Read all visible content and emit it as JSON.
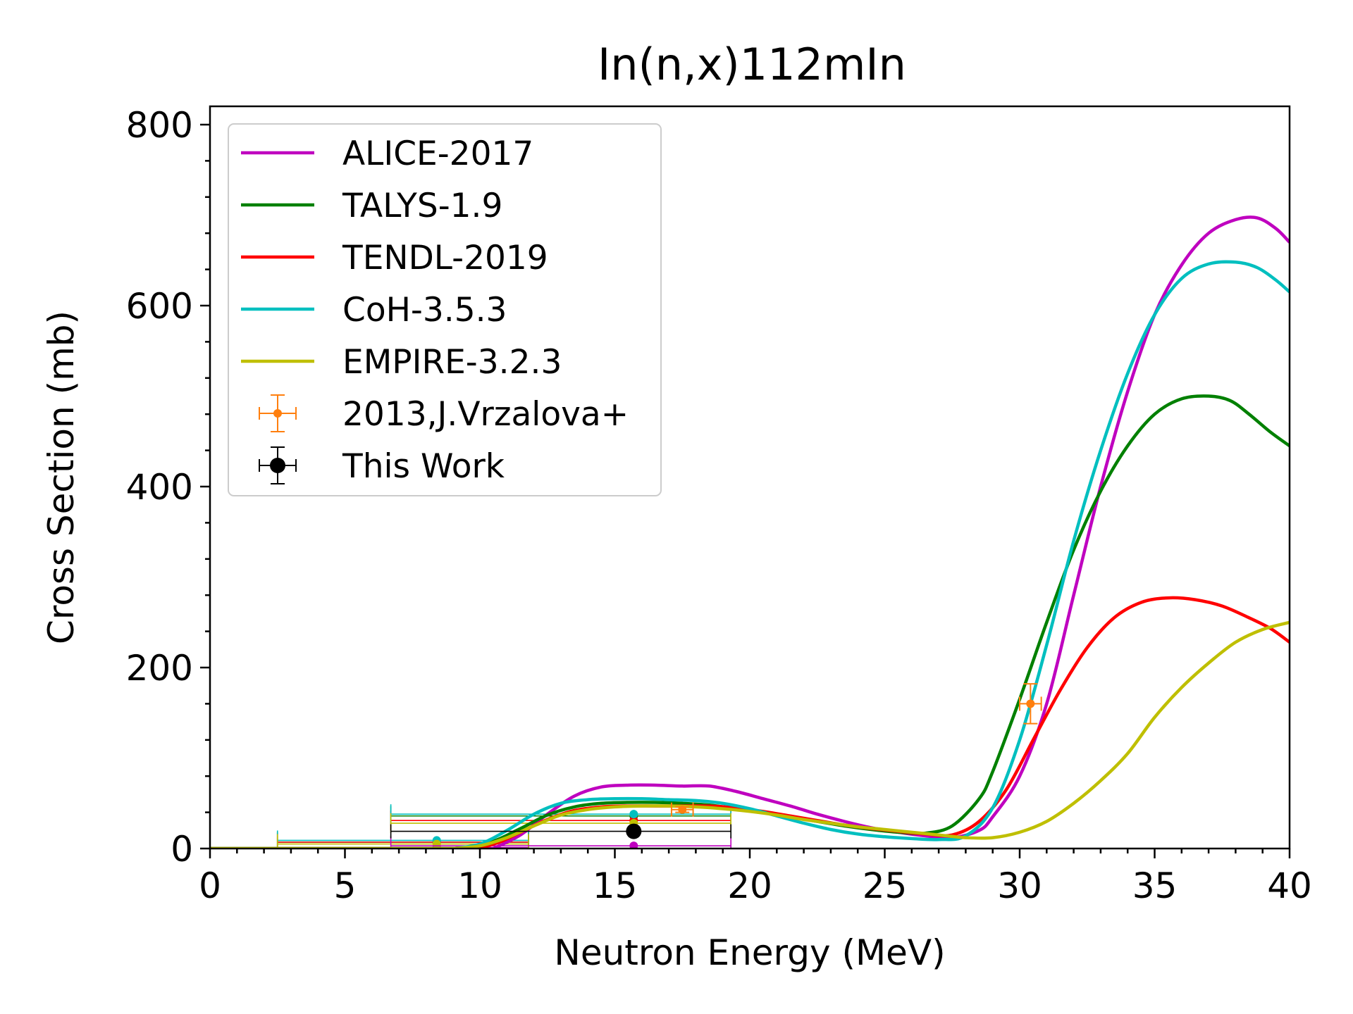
{
  "chart_data": {
    "type": "line",
    "title": "In(n,x)112mIn",
    "xlabel": "Neutron Energy (MeV)",
    "ylabel": "Cross Section (mb)",
    "xlim": [
      0,
      40
    ],
    "ylim": [
      0,
      820
    ],
    "xticks": [
      0,
      5,
      10,
      15,
      20,
      25,
      30,
      35,
      40
    ],
    "yticks": [
      0,
      200,
      400,
      600,
      800
    ],
    "grid": false,
    "legend_position": "top-left",
    "series": [
      {
        "name": "ALICE-2017",
        "color": "#bf00bf",
        "style": "line",
        "points": [
          [
            10.5,
            0
          ],
          [
            11.5,
            15
          ],
          [
            12.5,
            38
          ],
          [
            13.5,
            58
          ],
          [
            14.5,
            68
          ],
          [
            15.5,
            70
          ],
          [
            16.5,
            70
          ],
          [
            17.5,
            69
          ],
          [
            18.5,
            69
          ],
          [
            19.5,
            63
          ],
          [
            20.5,
            55
          ],
          [
            21.5,
            47
          ],
          [
            22.5,
            38
          ],
          [
            23.5,
            30
          ],
          [
            24.5,
            23
          ],
          [
            25.5,
            18
          ],
          [
            26.5,
            14
          ],
          [
            27.5,
            12
          ],
          [
            28.5,
            20
          ],
          [
            29,
            35
          ],
          [
            30,
            80
          ],
          [
            31,
            160
          ],
          [
            32,
            280
          ],
          [
            33,
            400
          ],
          [
            34,
            505
          ],
          [
            35,
            590
          ],
          [
            36,
            645
          ],
          [
            37,
            680
          ],
          [
            38,
            695
          ],
          [
            38.8,
            697
          ],
          [
            39.5,
            685
          ],
          [
            40,
            670
          ]
        ]
      },
      {
        "name": "TALYS-1.9",
        "color": "#008000",
        "style": "line",
        "points": [
          [
            9.5,
            0
          ],
          [
            10.5,
            8
          ],
          [
            11.5,
            22
          ],
          [
            12.5,
            37
          ],
          [
            13.5,
            46
          ],
          [
            14.5,
            50
          ],
          [
            15.5,
            51
          ],
          [
            16.5,
            51
          ],
          [
            17.5,
            50
          ],
          [
            18.5,
            48
          ],
          [
            19.5,
            44
          ],
          [
            20.5,
            40
          ],
          [
            21.5,
            35
          ],
          [
            22.5,
            30
          ],
          [
            23.5,
            25
          ],
          [
            24.5,
            21
          ],
          [
            25.5,
            18
          ],
          [
            26.5,
            17
          ],
          [
            27.5,
            25
          ],
          [
            28.5,
            55
          ],
          [
            29,
            85
          ],
          [
            30,
            165
          ],
          [
            31,
            250
          ],
          [
            32,
            330
          ],
          [
            33,
            395
          ],
          [
            34,
            445
          ],
          [
            35,
            480
          ],
          [
            36,
            497
          ],
          [
            37,
            500
          ],
          [
            37.8,
            495
          ],
          [
            38.5,
            480
          ],
          [
            39.3,
            460
          ],
          [
            40,
            445
          ]
        ]
      },
      {
        "name": "TENDL-2019",
        "color": "#ff0000",
        "style": "line",
        "points": [
          [
            10,
            0
          ],
          [
            10.8,
            8
          ],
          [
            11.5,
            18
          ],
          [
            12.5,
            32
          ],
          [
            13.5,
            42
          ],
          [
            14.5,
            46
          ],
          [
            15.5,
            47
          ],
          [
            16.5,
            47
          ],
          [
            17.5,
            47
          ],
          [
            18.5,
            47
          ],
          [
            19.5,
            45
          ],
          [
            20.5,
            41
          ],
          [
            21.5,
            36
          ],
          [
            22.5,
            31
          ],
          [
            23.5,
            26
          ],
          [
            24.5,
            22
          ],
          [
            25.5,
            19
          ],
          [
            26.5,
            16
          ],
          [
            27.5,
            15
          ],
          [
            28.5,
            30
          ],
          [
            29.5,
            65
          ],
          [
            30.5,
            120
          ],
          [
            31.5,
            175
          ],
          [
            32.5,
            222
          ],
          [
            33.5,
            255
          ],
          [
            34.5,
            272
          ],
          [
            35.5,
            277
          ],
          [
            36.5,
            275
          ],
          [
            37.5,
            268
          ],
          [
            38.5,
            255
          ],
          [
            39.3,
            243
          ],
          [
            40,
            228
          ]
        ]
      },
      {
        "name": "CoH-3.5.3",
        "color": "#00bfbf",
        "style": "line",
        "points": [
          [
            9,
            0
          ],
          [
            10,
            5
          ],
          [
            11,
            20
          ],
          [
            12,
            38
          ],
          [
            13,
            50
          ],
          [
            14,
            54
          ],
          [
            15,
            55
          ],
          [
            16,
            55
          ],
          [
            17,
            54
          ],
          [
            18,
            53
          ],
          [
            19,
            50
          ],
          [
            20,
            44
          ],
          [
            21,
            36
          ],
          [
            22,
            28
          ],
          [
            23,
            21
          ],
          [
            24,
            16
          ],
          [
            25,
            13
          ],
          [
            26,
            11
          ],
          [
            27,
            10
          ],
          [
            28,
            14
          ],
          [
            29,
            45
          ],
          [
            30,
            120
          ],
          [
            31,
            225
          ],
          [
            32,
            340
          ],
          [
            33,
            440
          ],
          [
            34,
            525
          ],
          [
            35,
            590
          ],
          [
            36,
            630
          ],
          [
            37,
            646
          ],
          [
            38,
            648
          ],
          [
            38.8,
            642
          ],
          [
            39.5,
            628
          ],
          [
            40,
            615
          ]
        ]
      },
      {
        "name": "EMPIRE-3.2.3",
        "color": "#bfbf00",
        "style": "line",
        "points": [
          [
            9,
            0
          ],
          [
            10,
            3
          ],
          [
            11,
            12
          ],
          [
            12,
            25
          ],
          [
            13,
            37
          ],
          [
            14,
            43
          ],
          [
            15,
            46
          ],
          [
            16,
            47
          ],
          [
            17,
            47
          ],
          [
            18,
            46
          ],
          [
            19,
            44
          ],
          [
            20,
            41
          ],
          [
            21,
            37
          ],
          [
            22,
            32
          ],
          [
            23,
            28
          ],
          [
            24,
            24
          ],
          [
            25,
            21
          ],
          [
            26,
            18
          ],
          [
            27,
            15
          ],
          [
            28,
            12
          ],
          [
            29,
            12
          ],
          [
            30,
            18
          ],
          [
            31,
            30
          ],
          [
            32,
            50
          ],
          [
            33,
            75
          ],
          [
            34,
            105
          ],
          [
            35,
            145
          ],
          [
            36,
            178
          ],
          [
            37,
            205
          ],
          [
            38,
            228
          ],
          [
            39,
            242
          ],
          [
            40,
            250
          ]
        ]
      },
      {
        "name": "2013,J.Vrzalova+",
        "color": "#ff7f0e",
        "style": "errorbar",
        "points": [
          {
            "x": 17.5,
            "y": 43,
            "xerr": 0.4,
            "yerr": 3
          },
          {
            "x": 30.4,
            "y": 160,
            "xerr": 0.4,
            "yerr": 22
          }
        ]
      },
      {
        "name": "This Work",
        "color": "#000000",
        "style": "errorbar",
        "points": [
          {
            "x": 15.7,
            "y": 19,
            "xerr_low": 9.0,
            "xerr_high": 3.6,
            "yerr": 2
          }
        ]
      }
    ],
    "averaged_points": [
      {
        "x": 8.4,
        "xmin": 2.5,
        "xmax": 11.8,
        "values": {
          "ALICE-2017": 1,
          "TALYS-1.9": 7,
          "TENDL-2019": 7,
          "CoH-3.5.3": 9,
          "EMPIRE-3.2.3": 5
        }
      },
      {
        "x": 15.7,
        "xmin": 6.7,
        "xmax": 19.3,
        "values": {
          "ALICE-2017": 3,
          "TALYS-1.9": 36,
          "TENDL-2019": 31,
          "CoH-3.5.3": 38,
          "EMPIRE-3.2.3": 28
        }
      }
    ]
  }
}
